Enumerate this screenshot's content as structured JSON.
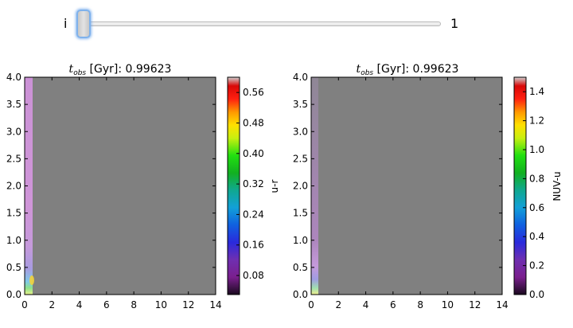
{
  "slider": {
    "min_label": "i",
    "max_label": "1",
    "value_fraction": 0.01
  },
  "panels": [
    {
      "title_symbol": "t",
      "title_subscript": "obs",
      "title_rest": " [Gyr]: 0.99623",
      "colorbar_label": "u-r",
      "colorbar_ticks": [
        "0.08",
        "0.16",
        "0.24",
        "0.32",
        "0.40",
        "0.48",
        "0.56"
      ]
    },
    {
      "title_symbol": "t",
      "title_subscript": "obs",
      "title_rest": " [Gyr]: 0.99623",
      "colorbar_label": "NUV-u",
      "colorbar_ticks": [
        "0.0",
        "0.2",
        "0.4",
        "0.6",
        "0.8",
        "1.0",
        "1.2",
        "1.4"
      ]
    }
  ],
  "chart_data": [
    {
      "type": "heatmap",
      "title": "t_obs [Gyr]: 0.99623",
      "colorbar_label": "u-r",
      "colorbar_range": [
        0.03,
        0.6
      ],
      "xlim": [
        0,
        14
      ],
      "ylim": [
        0.0,
        4.0
      ],
      "x_ticks": [
        "0",
        "2",
        "4",
        "6",
        "8",
        "10",
        "12",
        "14"
      ],
      "y_ticks": [
        "0.0",
        "0.5",
        "1.0",
        "1.5",
        "2.0",
        "2.5",
        "3.0",
        "3.5",
        "4.0"
      ],
      "background_color": "#808080",
      "colormap": "nipy_spectral"
    },
    {
      "type": "heatmap",
      "title": "t_obs [Gyr]: 0.99623",
      "colorbar_label": "NUV-u",
      "colorbar_range": [
        0.0,
        1.5
      ],
      "xlim": [
        0,
        14
      ],
      "ylim": [
        0.0,
        4.0
      ],
      "x_ticks": [
        "0",
        "2",
        "4",
        "6",
        "8",
        "10",
        "12",
        "14"
      ],
      "y_ticks": [
        "0.0",
        "0.5",
        "1.0",
        "1.5",
        "2.0",
        "2.5",
        "3.0",
        "3.5",
        "4.0"
      ],
      "background_color": "#808080",
      "colormap": "nipy_spectral"
    }
  ]
}
